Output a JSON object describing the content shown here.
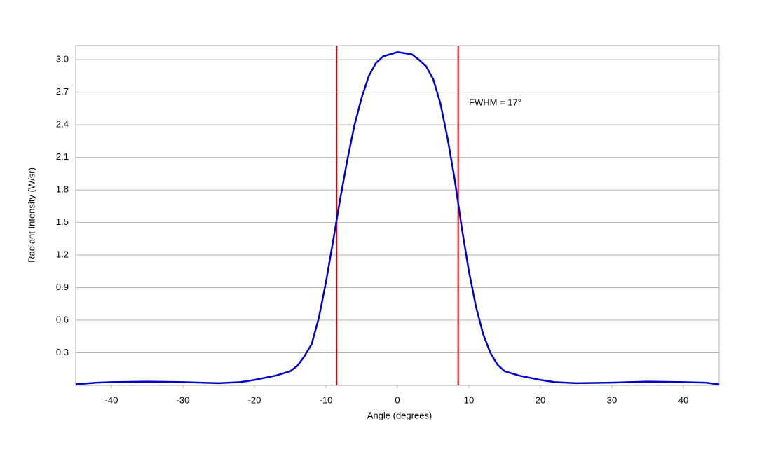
{
  "chart_data": {
    "type": "line",
    "xlabel": "Angle (degrees)",
    "ylabel": "Radiant Intensity (W/sr)",
    "x": [
      -45,
      -42,
      -40,
      -35,
      -30,
      -25,
      -22,
      -20,
      -17,
      -15,
      -14,
      -13,
      -12,
      -11,
      -10,
      -9,
      -8,
      -7,
      -6,
      -5,
      -4,
      -3,
      -2,
      -1,
      0,
      1,
      2,
      3,
      4,
      5,
      6,
      7,
      8,
      9,
      10,
      11,
      12,
      13,
      14,
      15,
      17,
      20,
      22,
      25,
      30,
      35,
      40,
      43,
      45
    ],
    "series": [
      {
        "name": "Radiant Intensity",
        "color": "#0000cc",
        "values": [
          0.01,
          0.025,
          0.03,
          0.035,
          0.03,
          0.02,
          0.03,
          0.05,
          0.09,
          0.13,
          0.18,
          0.27,
          0.38,
          0.62,
          0.95,
          1.33,
          1.72,
          2.08,
          2.4,
          2.65,
          2.85,
          2.97,
          3.03,
          3.05,
          3.07,
          3.06,
          3.05,
          3.0,
          2.94,
          2.82,
          2.6,
          2.28,
          1.9,
          1.45,
          1.05,
          0.72,
          0.47,
          0.3,
          0.19,
          0.13,
          0.09,
          0.05,
          0.03,
          0.02,
          0.025,
          0.035,
          0.03,
          0.025,
          0.01
        ]
      }
    ],
    "vlines": [
      -8.5,
      8.5
    ],
    "vline_color": "#e00000",
    "annotation": {
      "text": "FWHM = 17°",
      "x": 10,
      "y": 2.6
    },
    "xlim": [
      -45,
      45
    ],
    "xticks": [
      -40,
      -30,
      -20,
      -10,
      0,
      10,
      20,
      30,
      40
    ],
    "ylim": [
      0,
      3.13
    ],
    "yticks": [
      0.3,
      0.6,
      0.9,
      1.2,
      1.5,
      1.8,
      2.1,
      2.4,
      2.7,
      {
        "value": 3,
        "label": "3.0"
      }
    ],
    "grid": true
  }
}
